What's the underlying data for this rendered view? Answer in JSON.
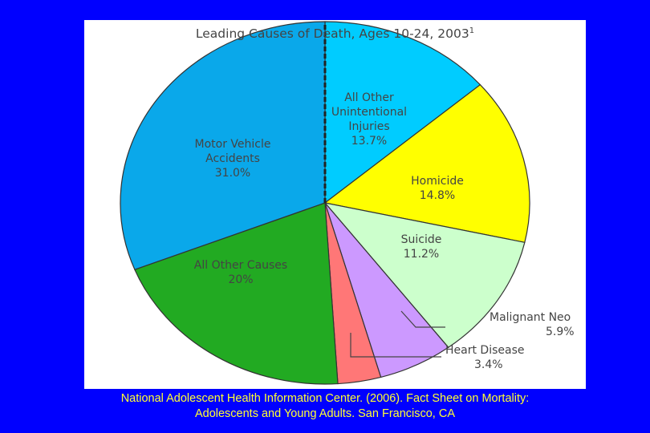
{
  "chart_data": {
    "type": "pie",
    "title": "Leading Causes of Death, Ages 10-24, 2003",
    "title_note": "1",
    "categories": [
      "All Other Unintentional Injuries",
      "Homicide",
      "Suicide",
      "Malignant Neo",
      "Heart Disease",
      "All Other Causes",
      "Motor Vehicle Accidents"
    ],
    "values": [
      13.7,
      14.8,
      11.2,
      5.9,
      3.4,
      20,
      31.0
    ],
    "value_labels": [
      "13.7%",
      "14.8%",
      "11.2%",
      "5.9%",
      "3.4%",
      "20%",
      "31.0%"
    ],
    "colors": [
      "#00ccff",
      "#ffff00",
      "#ccffcc",
      "#cc99ff",
      "#ff7777",
      "#22aa22",
      "#0aa8ea"
    ]
  },
  "caption": [
    "National Adolescent Health Information Center. (2006).  Fact Sheet on Mortality:",
    "Adolescents and Young Adults.  San Francisco, CA"
  ]
}
